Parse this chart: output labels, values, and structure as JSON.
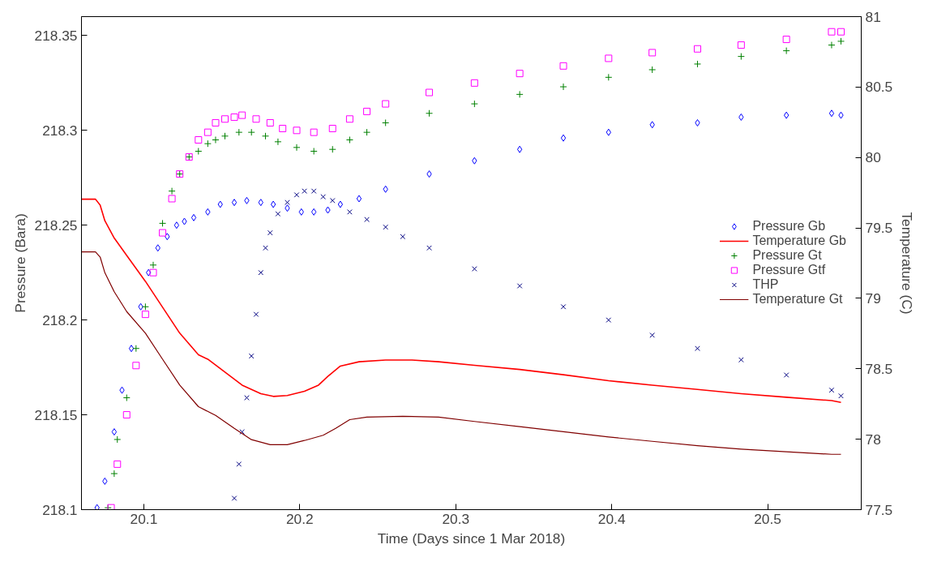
{
  "chart_data": {
    "type": "scatter",
    "xlabel": "Time (Days since 1 Mar 2018)",
    "ylabel": "Pressure (Bara)",
    "y2label": "Temperature (C)",
    "xlim": [
      20.06,
      20.56
    ],
    "xticks": [
      20.1,
      20.2,
      20.3,
      20.4,
      20.5
    ],
    "ylim": [
      218.1,
      218.36
    ],
    "yticks": [
      218.1,
      218.15,
      218.2,
      218.25,
      218.3,
      218.35
    ],
    "y2lim": [
      77.5,
      81
    ],
    "y2ticks": [
      77.5,
      78,
      78.5,
      79,
      79.5,
      80,
      80.5,
      81
    ],
    "grid": false,
    "legend": "right",
    "series": [
      {
        "name": "Pressure Gb",
        "marker": "diamond",
        "color": "#0000ff",
        "x": [
          20.07,
          20.075,
          20.081,
          20.086,
          20.092,
          20.098,
          20.103,
          20.109,
          20.115,
          20.121,
          20.126,
          20.132,
          20.141,
          20.149,
          20.158,
          20.166,
          20.175,
          20.183,
          20.192,
          20.201,
          20.209,
          20.218,
          20.226,
          20.238,
          20.255,
          20.283,
          20.312,
          20.341,
          20.369,
          20.398,
          20.426,
          20.455,
          20.483,
          20.512,
          20.541,
          20.547
        ],
        "values": [
          218.101,
          218.115,
          218.141,
          218.163,
          218.185,
          218.207,
          218.225,
          218.238,
          218.244,
          218.25,
          218.252,
          218.254,
          218.257,
          218.261,
          218.262,
          218.263,
          218.262,
          218.261,
          218.259,
          218.257,
          218.257,
          218.258,
          218.261,
          218.264,
          218.269,
          218.277,
          218.284,
          218.29,
          218.296,
          218.299,
          218.303,
          218.304,
          218.307,
          218.308,
          218.309,
          218.308
        ]
      },
      {
        "name": "Temperature Gb",
        "type": "line",
        "axis": "y2",
        "marker": "none",
        "color": "#ff0000",
        "x": [
          20.06,
          20.069,
          20.072,
          20.075,
          20.081,
          20.089,
          20.101,
          20.112,
          20.123,
          20.135,
          20.141,
          20.152,
          20.163,
          20.175,
          20.183,
          20.192,
          20.203,
          20.212,
          20.218,
          20.226,
          20.238,
          20.255,
          20.272,
          20.289,
          20.312,
          20.341,
          20.369,
          20.398,
          20.426,
          20.455,
          20.483,
          20.512,
          20.541,
          20.547
        ],
        "values": [
          79.704,
          79.704,
          79.661,
          79.551,
          79.428,
          79.305,
          79.121,
          78.937,
          78.753,
          78.599,
          78.568,
          78.476,
          78.384,
          78.323,
          78.304,
          78.31,
          78.341,
          78.384,
          78.446,
          78.519,
          78.55,
          78.562,
          78.562,
          78.55,
          78.525,
          78.495,
          78.458,
          78.415,
          78.384,
          78.353,
          78.323,
          78.298,
          78.274,
          78.261
        ]
      },
      {
        "name": "Pressure Gt",
        "marker": "cross",
        "color": "#008000",
        "x": [
          20.077,
          20.081,
          20.083,
          20.089,
          20.095,
          20.101,
          20.106,
          20.112,
          20.118,
          20.123,
          20.129,
          20.135,
          20.141,
          20.146,
          20.152,
          20.161,
          20.169,
          20.178,
          20.186,
          20.198,
          20.209,
          20.221,
          20.232,
          20.243,
          20.255,
          20.283,
          20.312,
          20.341,
          20.369,
          20.398,
          20.426,
          20.455,
          20.483,
          20.512,
          20.541,
          20.547
        ],
        "values": [
          218.101,
          218.119,
          218.137,
          218.159,
          218.185,
          218.207,
          218.229,
          218.251,
          218.268,
          218.277,
          218.286,
          218.289,
          218.293,
          218.295,
          218.297,
          218.299,
          218.299,
          218.297,
          218.294,
          218.291,
          218.289,
          218.29,
          218.295,
          218.299,
          218.304,
          218.309,
          218.314,
          218.319,
          218.323,
          218.328,
          218.332,
          218.335,
          218.339,
          218.342,
          218.345,
          218.347
        ]
      },
      {
        "name": "Pressure Gtf",
        "marker": "square",
        "color": "#ff00ff",
        "x": [
          20.079,
          20.083,
          20.089,
          20.095,
          20.101,
          20.106,
          20.112,
          20.118,
          20.123,
          20.129,
          20.135,
          20.141,
          20.146,
          20.152,
          20.158,
          20.163,
          20.172,
          20.181,
          20.189,
          20.198,
          20.209,
          20.221,
          20.232,
          20.243,
          20.255,
          20.283,
          20.312,
          20.341,
          20.369,
          20.398,
          20.426,
          20.455,
          20.483,
          20.512,
          20.541,
          20.547
        ],
        "values": [
          218.101,
          218.124,
          218.15,
          218.176,
          218.203,
          218.225,
          218.246,
          218.264,
          218.277,
          218.286,
          218.295,
          218.299,
          218.304,
          218.306,
          218.307,
          218.308,
          218.306,
          218.304,
          218.301,
          218.3,
          218.299,
          218.301,
          218.306,
          218.31,
          218.314,
          218.32,
          218.325,
          218.33,
          218.334,
          218.338,
          218.341,
          218.343,
          218.345,
          218.348,
          218.352,
          218.352
        ]
      },
      {
        "name": "THP",
        "marker": "x",
        "color": "#000080",
        "x": [
          20.158,
          20.161,
          20.163,
          20.166,
          20.169,
          20.172,
          20.175,
          20.178,
          20.181,
          20.186,
          20.192,
          20.198,
          20.203,
          20.209,
          20.215,
          20.221,
          20.232,
          20.243,
          20.255,
          20.266,
          20.283,
          20.312,
          20.341,
          20.369,
          20.398,
          20.426,
          20.455,
          20.483,
          20.512,
          20.541,
          20.547
        ],
        "values": [
          218.106,
          218.124,
          218.141,
          218.159,
          218.181,
          218.203,
          218.225,
          218.238,
          218.246,
          218.256,
          218.262,
          218.266,
          218.268,
          218.268,
          218.265,
          218.263,
          218.257,
          218.253,
          218.249,
          218.244,
          218.238,
          218.227,
          218.218,
          218.207,
          218.2,
          218.192,
          218.185,
          218.179,
          218.171,
          218.163,
          218.16
        ]
      },
      {
        "name": "Temperature Gt",
        "type": "line",
        "axis": "y2",
        "marker": "none",
        "color": "#800000",
        "x": [
          20.06,
          20.069,
          20.072,
          20.075,
          20.081,
          20.089,
          20.101,
          20.112,
          20.123,
          20.135,
          20.146,
          20.158,
          20.169,
          20.181,
          20.192,
          20.203,
          20.215,
          20.223,
          20.232,
          20.243,
          20.266,
          20.289,
          20.312,
          20.341,
          20.369,
          20.398,
          20.426,
          20.455,
          20.483,
          20.512,
          20.541,
          20.547
        ],
        "values": [
          79.33,
          79.33,
          79.293,
          79.182,
          79.047,
          78.906,
          78.753,
          78.568,
          78.384,
          78.231,
          78.169,
          78.077,
          77.997,
          77.961,
          77.961,
          77.991,
          78.028,
          78.077,
          78.139,
          78.157,
          78.163,
          78.157,
          78.126,
          78.089,
          78.053,
          78.016,
          77.985,
          77.954,
          77.93,
          77.911,
          77.893,
          77.893
        ]
      }
    ]
  }
}
